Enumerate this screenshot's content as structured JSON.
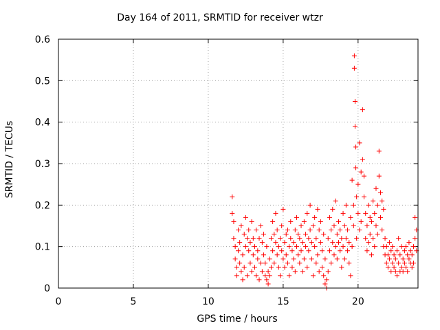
{
  "chart_data": {
    "type": "scatter",
    "title": "Day 164 of 2011, SRMTID for receiver wtzr",
    "xlabel": "GPS time / hours",
    "ylabel": "SRMTID / TECUs",
    "xlim": [
      0,
      24
    ],
    "ylim": [
      0,
      0.6
    ],
    "xticks": [
      "0",
      "5",
      "10",
      "15",
      "20"
    ],
    "yticks": [
      "0",
      "0.1",
      "0.2",
      "0.3",
      "0.4",
      "0.5",
      "0.6"
    ],
    "grid": true,
    "marker": "+",
    "color": "#ff0000",
    "series": [
      {
        "name": "SRMTID",
        "points": [
          [
            11.6,
            0.22
          ],
          [
            11.6,
            0.18
          ],
          [
            11.7,
            0.16
          ],
          [
            11.7,
            0.12
          ],
          [
            11.8,
            0.1
          ],
          [
            11.8,
            0.07
          ],
          [
            11.9,
            0.05
          ],
          [
            11.9,
            0.03
          ],
          [
            12.0,
            0.14
          ],
          [
            12.0,
            0.09
          ],
          [
            12.1,
            0.11
          ],
          [
            12.1,
            0.06
          ],
          [
            12.2,
            0.04
          ],
          [
            12.2,
            0.15
          ],
          [
            12.3,
            0.08
          ],
          [
            12.3,
            0.02
          ],
          [
            12.4,
            0.13
          ],
          [
            12.4,
            0.05
          ],
          [
            12.5,
            0.1
          ],
          [
            12.5,
            0.17
          ],
          [
            12.6,
            0.12
          ],
          [
            12.6,
            0.03
          ],
          [
            12.7,
            0.09
          ],
          [
            12.7,
            0.14
          ],
          [
            12.8,
            0.06
          ],
          [
            12.8,
            0.11
          ],
          [
            12.9,
            0.04
          ],
          [
            12.9,
            0.16
          ],
          [
            13.0,
            0.08
          ],
          [
            13.0,
            0.12
          ],
          [
            13.1,
            0.05
          ],
          [
            13.1,
            0.1
          ],
          [
            13.2,
            0.03
          ],
          [
            13.2,
            0.14
          ],
          [
            13.3,
            0.07
          ],
          [
            13.3,
            0.09
          ],
          [
            13.4,
            0.02
          ],
          [
            13.4,
            0.12
          ],
          [
            13.5,
            0.06
          ],
          [
            13.5,
            0.15
          ],
          [
            13.6,
            0.04
          ],
          [
            13.6,
            0.11
          ],
          [
            13.7,
            0.08
          ],
          [
            13.7,
            0.13
          ],
          [
            13.8,
            0.03
          ],
          [
            13.8,
            0.06
          ],
          [
            13.9,
            0.02
          ],
          [
            13.9,
            0.1
          ],
          [
            14.0,
            0.04
          ],
          [
            14.0,
            0.01
          ],
          [
            14.1,
            0.07
          ],
          [
            14.1,
            0.03
          ],
          [
            14.2,
            0.05
          ],
          [
            14.2,
            0.12
          ],
          [
            14.3,
            0.16
          ],
          [
            14.3,
            0.09
          ],
          [
            14.4,
            0.13
          ],
          [
            14.4,
            0.06
          ],
          [
            14.5,
            0.18
          ],
          [
            14.5,
            0.11
          ],
          [
            14.6,
            0.08
          ],
          [
            14.6,
            0.14
          ],
          [
            14.7,
            0.05
          ],
          [
            14.7,
            0.1
          ],
          [
            14.8,
            0.12
          ],
          [
            14.8,
            0.03
          ],
          [
            14.9,
            0.09
          ],
          [
            14.9,
            0.15
          ],
          [
            15.0,
            0.07
          ],
          [
            15.0,
            0.19
          ],
          [
            15.1,
            0.11
          ],
          [
            15.1,
            0.05
          ],
          [
            15.2,
            0.13
          ],
          [
            15.2,
            0.08
          ],
          [
            15.3,
            0.06
          ],
          [
            15.3,
            0.14
          ],
          [
            15.4,
            0.1
          ],
          [
            15.4,
            0.03
          ],
          [
            15.5,
            0.12
          ],
          [
            15.5,
            0.16
          ],
          [
            15.6,
            0.09
          ],
          [
            15.6,
            0.05
          ],
          [
            15.7,
            0.11
          ],
          [
            15.7,
            0.07
          ],
          [
            15.8,
            0.14
          ],
          [
            15.8,
            0.04
          ],
          [
            15.9,
            0.1
          ],
          [
            15.9,
            0.17
          ],
          [
            16.0,
            0.08
          ],
          [
            16.0,
            0.13
          ],
          [
            16.1,
            0.12
          ],
          [
            16.1,
            0.06
          ],
          [
            16.2,
            0.15
          ],
          [
            16.2,
            0.09
          ],
          [
            16.3,
            0.04
          ],
          [
            16.3,
            0.11
          ],
          [
            16.4,
            0.16
          ],
          [
            16.4,
            0.07
          ],
          [
            16.5,
            0.13
          ],
          [
            16.5,
            0.1
          ],
          [
            16.6,
            0.18
          ],
          [
            16.6,
            0.05
          ],
          [
            16.7,
            0.12
          ],
          [
            16.7,
            0.09
          ],
          [
            16.8,
            0.2
          ],
          [
            16.8,
            0.14
          ],
          [
            16.9,
            0.07
          ],
          [
            16.9,
            0.11
          ],
          [
            17.0,
            0.15
          ],
          [
            17.0,
            0.03
          ],
          [
            17.1,
            0.1
          ],
          [
            17.1,
            0.17
          ],
          [
            17.2,
            0.06
          ],
          [
            17.2,
            0.12
          ],
          [
            17.3,
            0.19
          ],
          [
            17.3,
            0.08
          ],
          [
            17.4,
            0.14
          ],
          [
            17.4,
            0.04
          ],
          [
            17.5,
            0.11
          ],
          [
            17.5,
            0.16
          ],
          [
            17.6,
            0.05
          ],
          [
            17.6,
            0.09
          ],
          [
            17.7,
            0.03
          ],
          [
            17.7,
            0.13
          ],
          [
            17.8,
            0.01
          ],
          [
            17.8,
            0.07
          ],
          [
            17.9,
            0.02
          ],
          [
            17.9,
            0.0
          ],
          [
            18.0,
            0.04
          ],
          [
            18.0,
            0.12
          ],
          [
            18.1,
            0.17
          ],
          [
            18.1,
            0.09
          ],
          [
            18.2,
            0.14
          ],
          [
            18.2,
            0.06
          ],
          [
            18.3,
            0.11
          ],
          [
            18.3,
            0.19
          ],
          [
            18.4,
            0.08
          ],
          [
            18.4,
            0.15
          ],
          [
            18.5,
            0.1
          ],
          [
            18.5,
            0.21
          ],
          [
            18.6,
            0.13
          ],
          [
            18.6,
            0.07
          ],
          [
            18.7,
            0.16
          ],
          [
            18.7,
            0.11
          ],
          [
            18.8,
            0.09
          ],
          [
            18.8,
            0.14
          ],
          [
            18.9,
            0.05
          ],
          [
            18.9,
            0.12
          ],
          [
            19.0,
            0.18
          ],
          [
            19.0,
            0.1
          ],
          [
            19.1,
            0.15
          ],
          [
            19.1,
            0.07
          ],
          [
            19.2,
            0.12
          ],
          [
            19.2,
            0.2
          ],
          [
            19.3,
            0.09
          ],
          [
            19.3,
            0.14
          ],
          [
            19.4,
            0.11
          ],
          [
            19.4,
            0.06
          ],
          [
            19.5,
            0.17
          ],
          [
            19.5,
            0.03
          ],
          [
            19.6,
            0.1
          ],
          [
            19.6,
            0.26
          ],
          [
            19.7,
            0.2
          ],
          [
            19.7,
            0.15
          ],
          [
            19.75,
            0.53
          ],
          [
            19.75,
            0.56
          ],
          [
            19.8,
            0.45
          ],
          [
            19.8,
            0.39
          ],
          [
            19.85,
            0.29
          ],
          [
            19.85,
            0.34
          ],
          [
            19.9,
            0.22
          ],
          [
            19.9,
            0.12
          ],
          [
            20.0,
            0.25
          ],
          [
            20.0,
            0.18
          ],
          [
            20.1,
            0.14
          ],
          [
            20.1,
            0.35
          ],
          [
            20.2,
            0.28
          ],
          [
            20.2,
            0.16
          ],
          [
            20.3,
            0.43
          ],
          [
            20.3,
            0.31
          ],
          [
            20.4,
            0.22
          ],
          [
            20.4,
            0.27
          ],
          [
            20.5,
            0.12
          ],
          [
            20.5,
            0.18
          ],
          [
            20.6,
            0.15
          ],
          [
            20.6,
            0.09
          ],
          [
            20.7,
            0.2
          ],
          [
            20.7,
            0.11
          ],
          [
            20.8,
            0.17
          ],
          [
            20.8,
            0.13
          ],
          [
            20.9,
            0.08
          ],
          [
            20.9,
            0.16
          ],
          [
            21.0,
            0.21
          ],
          [
            21.0,
            0.12
          ],
          [
            21.1,
            0.18
          ],
          [
            21.1,
            0.1
          ],
          [
            21.2,
            0.15
          ],
          [
            21.2,
            0.24
          ],
          [
            21.3,
            0.2
          ],
          [
            21.3,
            0.13
          ],
          [
            21.4,
            0.33
          ],
          [
            21.4,
            0.27
          ],
          [
            21.5,
            0.23
          ],
          [
            21.5,
            0.17
          ],
          [
            21.6,
            0.21
          ],
          [
            21.6,
            0.14
          ],
          [
            21.7,
            0.1
          ],
          [
            21.7,
            0.19
          ],
          [
            21.8,
            0.08
          ],
          [
            21.8,
            0.12
          ],
          [
            21.9,
            0.06
          ],
          [
            21.9,
            0.1
          ],
          [
            22.0,
            0.08
          ],
          [
            22.0,
            0.05
          ],
          [
            22.1,
            0.11
          ],
          [
            22.1,
            0.07
          ],
          [
            22.2,
            0.04
          ],
          [
            22.2,
            0.09
          ],
          [
            22.3,
            0.06
          ],
          [
            22.3,
            0.1
          ],
          [
            22.4,
            0.05
          ],
          [
            22.4,
            0.08
          ],
          [
            22.5,
            0.04
          ],
          [
            22.5,
            0.07
          ],
          [
            22.6,
            0.03
          ],
          [
            22.6,
            0.09
          ],
          [
            22.7,
            0.06
          ],
          [
            22.7,
            0.12
          ],
          [
            22.8,
            0.04
          ],
          [
            22.8,
            0.08
          ],
          [
            22.9,
            0.05
          ],
          [
            22.9,
            0.1
          ],
          [
            23.0,
            0.07
          ],
          [
            23.0,
            0.04
          ],
          [
            23.1,
            0.09
          ],
          [
            23.1,
            0.06
          ],
          [
            23.2,
            0.05
          ],
          [
            23.2,
            0.1
          ],
          [
            23.3,
            0.08
          ],
          [
            23.3,
            0.04
          ],
          [
            23.4,
            0.07
          ],
          [
            23.4,
            0.11
          ],
          [
            23.5,
            0.06
          ],
          [
            23.5,
            0.09
          ],
          [
            23.6,
            0.05
          ],
          [
            23.6,
            0.08
          ],
          [
            23.7,
            0.1
          ],
          [
            23.7,
            0.06
          ],
          [
            23.8,
            0.17
          ],
          [
            23.8,
            0.12
          ],
          [
            23.9,
            0.09
          ],
          [
            23.9,
            0.14
          ]
        ]
      }
    ]
  }
}
